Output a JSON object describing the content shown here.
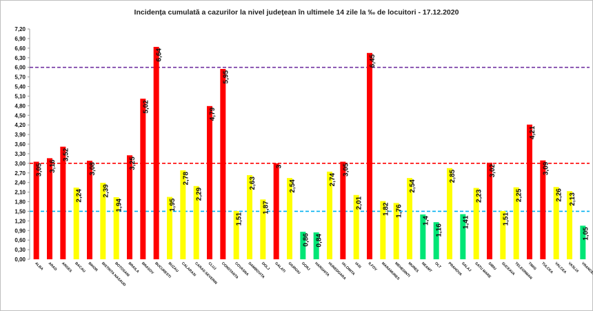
{
  "chart_data": {
    "type": "bar",
    "title": "Incidența cumulată a cazurilor la nivel județean în ultimele 14 zile la ‰ de locuitori - 17.12.2020",
    "xlabel": "",
    "ylabel": "",
    "ylim": [
      0,
      7.2
    ],
    "yticks": [
      "0,00",
      "0,30",
      "0,60",
      "0,90",
      "1,20",
      "1,50",
      "1,80",
      "2,10",
      "2,40",
      "2,70",
      "3,00",
      "3,30",
      "3,60",
      "3,90",
      "4,20",
      "4,50",
      "4,80",
      "5,10",
      "5,40",
      "5,70",
      "6,00",
      "6,30",
      "6,60",
      "6,90",
      "7,20"
    ],
    "grid": false,
    "legend": "none",
    "categories": [
      "ALBA",
      "ARAD",
      "ARGES",
      "BACAU",
      "BIHOR",
      "BISTRITA NASAUD",
      "BOTOSANI",
      "BRAILA",
      "BRASOV",
      "BUCURESTI",
      "BUZAU",
      "CALARASI",
      "CARAS-SEVERIN",
      "CLUJ",
      "CONSTANTA",
      "COVASNA",
      "DAMBOVITA",
      "DOLJ",
      "GALATI",
      "GIURGIU",
      "GORJ",
      "HARGHITA",
      "HUNEDOARA",
      "IALOMITA",
      "IASI",
      "ILFOV",
      "MARAMURES",
      "MEHEDINTI",
      "MURES",
      "NEAMT",
      "OLT",
      "PRAHOVA",
      "SALAJ",
      "SATU MARE",
      "SIBIU",
      "SUCEAVA",
      "TELEORMAN",
      "TIMIS",
      "TULCEA",
      "VALCEA",
      "VASLUI",
      "VRANCEA"
    ],
    "values": [
      3.05,
      3.16,
      3.52,
      2.24,
      3.08,
      2.39,
      1.94,
      3.25,
      5.02,
      6.64,
      1.95,
      2.78,
      2.29,
      4.79,
      5.95,
      1.51,
      2.63,
      1.87,
      3,
      2.54,
      0.86,
      0.84,
      2.74,
      3.05,
      2.01,
      6.45,
      1.82,
      1.76,
      2.54,
      1.4,
      1.16,
      2.85,
      1.41,
      2.23,
      3.02,
      1.51,
      2.25,
      4.21,
      3.09,
      2.26,
      2.13,
      1.05
    ],
    "value_labels": [
      "3,05",
      "3,16",
      "3,52",
      "2,24",
      "3,08",
      "2,39",
      "1,94",
      "3,25",
      "5,02",
      "6,64",
      "1,95",
      "2,78",
      "2,29",
      "4,79",
      "5,95",
      "1,51",
      "2,63",
      "1,87",
      "3",
      "2,54",
      "0,86",
      "0,84",
      "2,74",
      "3,05",
      "2,01",
      "6,45",
      "1,82",
      "1,76",
      "2,54",
      "1,4",
      "1,16",
      "2,85",
      "1,41",
      "2,23",
      "3,02",
      "1,51",
      "2,25",
      "4,21",
      "3,09",
      "2,26",
      "2,13",
      "1,05"
    ],
    "reference_lines": [
      {
        "value": 6.0,
        "color": "#7030a0"
      },
      {
        "value": 3.0,
        "color": "#ff0000"
      },
      {
        "value": 1.5,
        "color": "#00b0f0"
      }
    ],
    "colors": {
      "high": "#ff0000",
      "medium": "#ffff00",
      "low": "#00e676"
    }
  }
}
